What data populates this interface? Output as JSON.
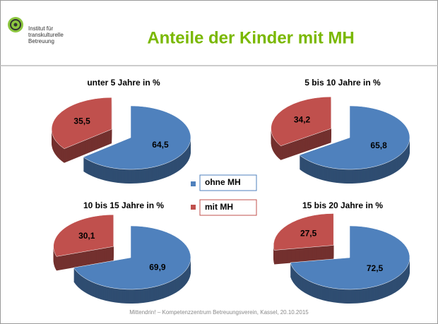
{
  "title": "Anteile der Kinder mit MH",
  "logo": [
    "Institut für",
    "transkulturelle",
    "Betreuung"
  ],
  "footer": "Mittendrin! – Kompetenzzentrum Betreuungsverein, Kassel, 20.10.2015",
  "chart_data": [
    {
      "type": "pie",
      "title": "unter  5 Jahre in %",
      "categories": [
        "ohne MH",
        "mit MH"
      ],
      "values": [
        64.5,
        35.5
      ],
      "value_labels": [
        "64,5",
        "35,5"
      ],
      "colors": [
        "#4f81bd",
        "#c0504d"
      ]
    },
    {
      "type": "pie",
      "title": "5 bis 10 Jahre in %",
      "categories": [
        "ohne MH",
        "mit MH"
      ],
      "values": [
        65.8,
        34.2
      ],
      "value_labels": [
        "65,8",
        "34,2"
      ],
      "colors": [
        "#4f81bd",
        "#c0504d"
      ]
    },
    {
      "type": "pie",
      "title": "10 bis 15 Jahre in %",
      "categories": [
        "ohne MH",
        "mit MH"
      ],
      "values": [
        69.9,
        30.1
      ],
      "value_labels": [
        "69,9",
        "30,1"
      ],
      "colors": [
        "#4f81bd",
        "#c0504d"
      ]
    },
    {
      "type": "pie",
      "title": "15 bis 20 Jahre in %",
      "categories": [
        "ohne MH",
        "mit MH"
      ],
      "values": [
        72.5,
        27.5
      ],
      "value_labels": [
        "72,5",
        "27,5"
      ],
      "colors": [
        "#4f81bd",
        "#c0504d"
      ]
    }
  ]
}
